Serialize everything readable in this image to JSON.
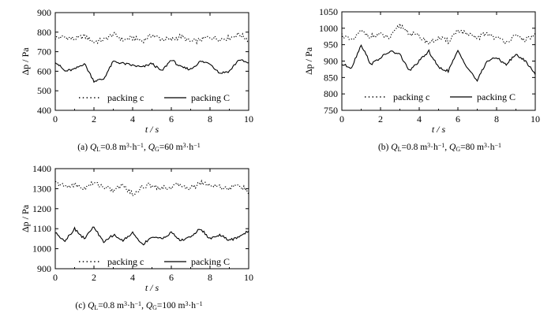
{
  "chart_data": [
    {
      "type": "line",
      "caption": "(a) QL=0.8 m³·h⁻¹,   QG=60 m³·h⁻¹",
      "caption_parts": [
        "(a) ",
        "Q",
        "L",
        "=0.8 m",
        "3",
        "·h",
        "−1",
        ",   ",
        "Q",
        "G",
        "=60 m",
        "3",
        "·h",
        "−1"
      ],
      "xlabel": "t / s",
      "ylabel": "Δp / Pa",
      "xlim": [
        0,
        10
      ],
      "ylim": [
        400,
        900
      ],
      "xticks": [
        "0",
        "2",
        "4",
        "6",
        "8",
        "10"
      ],
      "yticks": [
        "400",
        "500",
        "600",
        "700",
        "800",
        "900"
      ],
      "legend_placement": "bottom-center",
      "series": [
        {
          "name": "packing c",
          "style": "dotted",
          "x": [
            0,
            0.5,
            1,
            1.5,
            2,
            2.5,
            3,
            3.5,
            4,
            4.5,
            5,
            5.5,
            6,
            6.5,
            7,
            7.5,
            8,
            8.5,
            9,
            9.5,
            10
          ],
          "values": [
            770,
            775,
            765,
            780,
            750,
            760,
            790,
            760,
            770,
            755,
            785,
            765,
            760,
            780,
            750,
            760,
            775,
            765,
            770,
            790,
            760
          ]
        },
        {
          "name": "packing C",
          "style": "solid",
          "x": [
            0,
            0.5,
            1,
            1.5,
            2,
            2.5,
            3,
            3.5,
            4,
            4.5,
            5,
            5.5,
            6,
            6.5,
            7,
            7.5,
            8,
            8.5,
            9,
            9.5,
            10
          ],
          "values": [
            650,
            600,
            610,
            640,
            550,
            560,
            650,
            640,
            630,
            620,
            640,
            600,
            660,
            620,
            610,
            650,
            640,
            590,
            600,
            660,
            640
          ]
        }
      ]
    },
    {
      "type": "line",
      "caption": "(b) QL=0.8 m³·h⁻¹,   QG=80 m³·h⁻¹",
      "caption_parts": [
        "(b) ",
        "Q",
        "L",
        "=0.8 m",
        "3",
        "·h",
        "−1",
        ",   ",
        "Q",
        "G",
        "=80 m",
        "3",
        "·h",
        "−1"
      ],
      "xlabel": "t / s",
      "ylabel": "Δp / Pa",
      "xlim": [
        0,
        10
      ],
      "ylim": [
        750,
        1050
      ],
      "xticks": [
        "0",
        "2",
        "4",
        "6",
        "8",
        "10"
      ],
      "yticks": [
        "750",
        "800",
        "850",
        "900",
        "950",
        "1000",
        "1050"
      ],
      "legend_placement": "bottom-center",
      "series": [
        {
          "name": "packing c",
          "style": "dotted",
          "x": [
            0,
            0.5,
            1,
            1.5,
            2,
            2.5,
            3,
            3.5,
            4,
            4.5,
            5,
            5.5,
            6,
            6.5,
            7,
            7.5,
            8,
            8.5,
            9,
            9.5,
            10
          ],
          "values": [
            980,
            960,
            990,
            975,
            980,
            970,
            1010,
            985,
            975,
            955,
            970,
            960,
            995,
            980,
            970,
            985,
            970,
            960,
            975,
            965,
            980
          ]
        },
        {
          "name": "packing C",
          "style": "solid",
          "x": [
            0,
            0.5,
            1,
            1.5,
            2,
            2.5,
            3,
            3.5,
            4,
            4.5,
            5,
            5.5,
            6,
            6.5,
            7,
            7.5,
            8,
            8.5,
            9,
            9.5,
            10
          ],
          "values": [
            890,
            880,
            950,
            890,
            910,
            930,
            920,
            870,
            900,
            930,
            880,
            870,
            930,
            880,
            840,
            900,
            910,
            890,
            920,
            900,
            860
          ]
        }
      ]
    },
    {
      "type": "line",
      "caption": "(c) QL=0.8 m³·h⁻¹,   QG=100 m³·h⁻¹",
      "caption_parts": [
        "(c) ",
        "Q",
        "L",
        "=0.8 m",
        "3",
        "·h",
        "−1",
        ",   ",
        "Q",
        "G",
        "=100 m",
        "3",
        "·h",
        "−1"
      ],
      "xlabel": "t / s",
      "ylabel": "Δp / Pa",
      "xlim": [
        0,
        10
      ],
      "ylim": [
        900,
        1400
      ],
      "xticks": [
        "0",
        "2",
        "4",
        "6",
        "8",
        "10"
      ],
      "yticks": [
        "900",
        "1000",
        "1100",
        "1200",
        "1300",
        "1400"
      ],
      "legend_placement": "bottom-center",
      "series": [
        {
          "name": "packing c",
          "style": "dotted",
          "x": [
            0,
            0.5,
            1,
            1.5,
            2,
            2.5,
            3,
            3.5,
            4,
            4.5,
            5,
            5.5,
            6,
            6.5,
            7,
            7.5,
            8,
            8.5,
            9,
            9.5,
            10
          ],
          "values": [
            1330,
            1310,
            1320,
            1300,
            1330,
            1310,
            1290,
            1320,
            1270,
            1310,
            1320,
            1300,
            1310,
            1320,
            1300,
            1330,
            1320,
            1310,
            1300,
            1320,
            1280
          ]
        },
        {
          "name": "packing C",
          "style": "solid",
          "x": [
            0,
            0.5,
            1,
            1.5,
            2,
            2.5,
            3,
            3.5,
            4,
            4.5,
            5,
            5.5,
            6,
            6.5,
            7,
            7.5,
            8,
            8.5,
            9,
            9.5,
            10
          ],
          "values": [
            1080,
            1040,
            1100,
            1050,
            1110,
            1030,
            1070,
            1040,
            1080,
            1020,
            1060,
            1050,
            1080,
            1040,
            1060,
            1100,
            1050,
            1070,
            1040,
            1060,
            1090
          ]
        }
      ]
    }
  ]
}
